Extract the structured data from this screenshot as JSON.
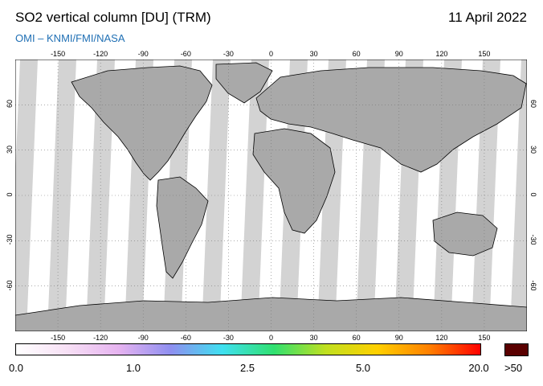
{
  "header": {
    "title": "SO2 vertical column [DU] (TRM)",
    "date": "11 April 2022",
    "credit": "OMI  –  KNMI/FMI/NASA"
  },
  "map": {
    "lon_ticks": [
      "-150",
      "-120",
      "-90",
      "-60",
      "-30",
      "0",
      "30",
      "60",
      "90",
      "120",
      "150"
    ],
    "lon_values": [
      -150,
      -120,
      -90,
      -60,
      -30,
      0,
      30,
      60,
      90,
      120,
      150
    ],
    "lat_ticks": [
      "60",
      "30",
      "0",
      "-30",
      "-60"
    ],
    "lat_values": [
      60,
      30,
      0,
      -30,
      -60
    ],
    "lon_range": [
      -180,
      180
    ],
    "lat_range": [
      -90,
      90
    ],
    "grid": "dotted",
    "colors": {
      "ocean": "#d3d3d3",
      "swath": "#ffffff",
      "land_no_data": "#a9a9a9",
      "coast": "#000000"
    }
  },
  "colorbar": {
    "labels": [
      "0.0",
      "1.0",
      "2.5",
      "5.0",
      "20.0"
    ],
    "over_label": ">50",
    "over_color": "#5a0000",
    "stops": [
      "#ffffff",
      "#f7e0f5",
      "#e6b3f0",
      "#8f8ff0",
      "#3fe0f0",
      "#30e070",
      "#c0e020",
      "#ffd000",
      "#ff8000",
      "#ff0000"
    ]
  }
}
